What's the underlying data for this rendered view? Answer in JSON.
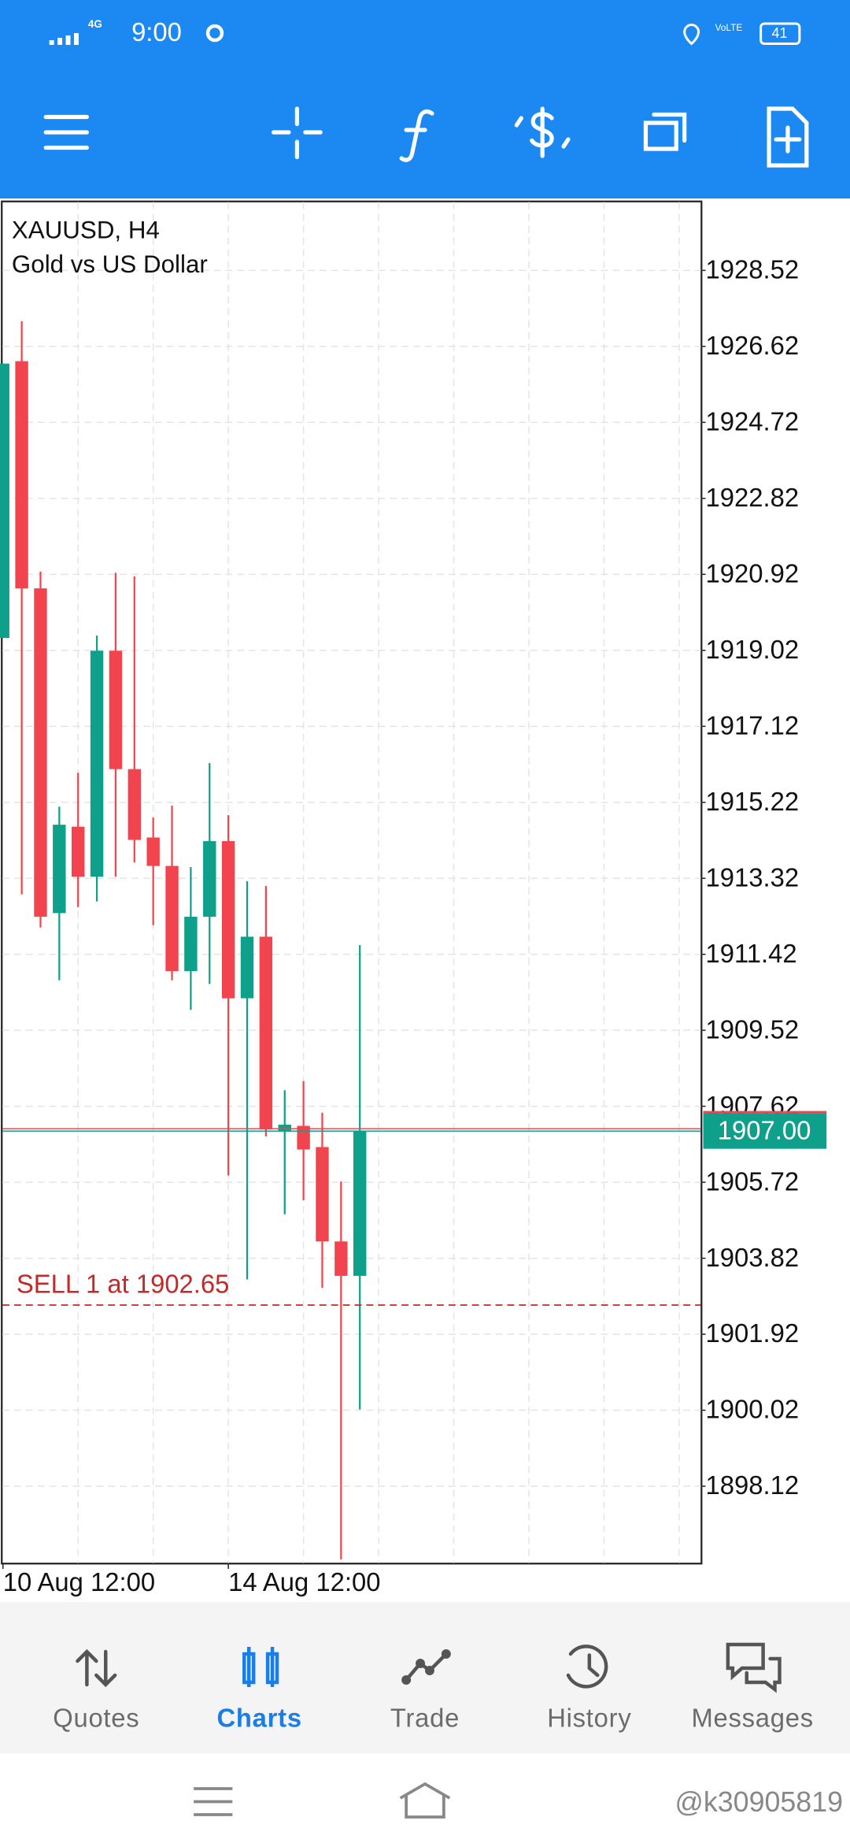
{
  "status_bar": {
    "time": "9:00",
    "network": "4G",
    "battery": "41"
  },
  "chart_data": {
    "type": "candlestick",
    "title": "XAUUSD, H4",
    "subtitle": "Gold vs US Dollar",
    "categories": [
      "10 Aug 12:00",
      null,
      null,
      null,
      null,
      null,
      null,
      null,
      null,
      null,
      null,
      null,
      "14 Aug 12:00",
      null,
      null,
      null,
      null,
      null,
      null,
      null
    ],
    "open": [
      1919.33,
      1926.25,
      1920.57,
      1912.45,
      1914.61,
      1913.36,
      1919.01,
      1916.05,
      1914.34,
      1913.63,
      1911.0,
      1912.36,
      1914.25,
      1910.32,
      1911.86,
      1907.01,
      1907.13,
      1906.6,
      1904.24,
      1903.38
    ],
    "high": [
      1926.19,
      1927.25,
      1920.99,
      1915.11,
      1915.96,
      1919.39,
      1920.96,
      1920.87,
      1914.84,
      1915.14,
      1913.6,
      1916.2,
      1914.9,
      1913.25,
      1913.13,
      1908.02,
      1908.25,
      1907.46,
      1905.74,
      1911.65
    ],
    "low": [
      1919.33,
      1912.92,
      1912.09,
      1910.77,
      1912.6,
      1912.74,
      1913.36,
      1913.72,
      1912.15,
      1910.77,
      1910.03,
      1910.68,
      1905.89,
      1903.29,
      1906.87,
      1904.92,
      1905.27,
      1903.08,
      1896.29,
      1900.04
    ],
    "close": [
      1926.19,
      1920.57,
      1912.36,
      1914.66,
      1913.36,
      1919.01,
      1916.05,
      1914.28,
      1913.63,
      1911.0,
      1912.36,
      1914.25,
      1910.32,
      1911.86,
      1907.04,
      1907.16,
      1906.54,
      1904.24,
      1903.38,
      1907.0
    ],
    "up_color": "#0ea08a",
    "down_color": "#f2444f",
    "ylim": [
      1896.2,
      1930.23
    ],
    "yticks": [
      1928.52,
      1926.62,
      1924.72,
      1922.82,
      1920.92,
      1919.02,
      1917.12,
      1915.22,
      1913.32,
      1911.42,
      1909.52,
      1907.62,
      1905.72,
      1903.82,
      1901.92,
      1900.02,
      1898.12
    ],
    "grid": true,
    "current_price": {
      "value": 1907,
      "label": "1907.00"
    },
    "order_line": {
      "value": 1902.65,
      "label": "SELL 1 at 1902.65"
    }
  },
  "bottom_nav": {
    "items": [
      "Quotes",
      "Charts",
      "Trade",
      "History",
      "Messages"
    ],
    "active": 1
  },
  "watermark": "@k30905819"
}
